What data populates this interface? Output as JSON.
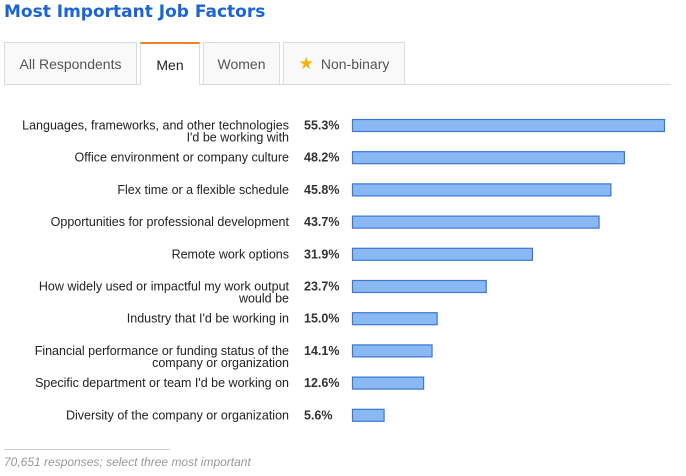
{
  "title": "Most Important Job Factors",
  "tabs": [
    {
      "label": "All Respondents",
      "active": false,
      "icon": null
    },
    {
      "label": "Men",
      "active": true,
      "icon": null
    },
    {
      "label": "Women",
      "active": false,
      "icon": null
    },
    {
      "label": "Non-binary",
      "active": false,
      "icon": "star-icon"
    }
  ],
  "footnote": "70,651 responses; select three most important",
  "colors": {
    "title": "#1a64d6",
    "bar_fill": "#8ab8f2",
    "bar_stroke": "#3a78d4",
    "label": "#222222",
    "value": "#333333",
    "tab_accent": "#f48024",
    "star": "#f5b400"
  },
  "chart_data": {
    "type": "bar",
    "orientation": "horizontal",
    "categories": [
      [
        "Languages, frameworks, and other technologies",
        "I'd be working with"
      ],
      [
        "Office environment or company culture"
      ],
      [
        "Flex time or a flexible schedule"
      ],
      [
        "Opportunities for professional development"
      ],
      [
        "Remote work options"
      ],
      [
        "How widely used or impactful my work output",
        "would be"
      ],
      [
        "Industry that I'd be working in"
      ],
      [
        "Financial performance or funding status of the",
        "company or organization"
      ],
      [
        "Specific department or team I'd be working on"
      ],
      [
        "Diversity of the company or organization"
      ]
    ],
    "values": [
      55.3,
      48.2,
      45.8,
      43.7,
      31.9,
      23.7,
      15.0,
      14.1,
      12.6,
      5.6
    ],
    "value_labels": [
      "55.3%",
      "48.2%",
      "45.8%",
      "43.7%",
      "31.9%",
      "23.7%",
      "15.0%",
      "14.1%",
      "12.6%",
      "5.6%"
    ],
    "xlim": [
      0,
      55.3
    ],
    "grid": false,
    "legend": "none"
  }
}
